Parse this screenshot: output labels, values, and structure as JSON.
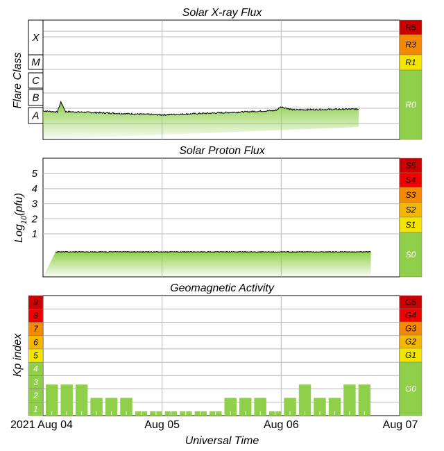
{
  "colors": {
    "green": "#8fcf4a",
    "yellow": "#f2e600",
    "gold": "#f5b800",
    "orange": "#f58a00",
    "red": "#f20000",
    "darkred": "#cc0000",
    "grid": "#b8b8b8"
  },
  "xaxis": {
    "label": "Universal Time",
    "ticks": [
      {
        "label": "2021 Aug 04",
        "day": 0
      },
      {
        "label": "Aug 05",
        "day": 1
      },
      {
        "label": "Aug 06",
        "day": 2
      },
      {
        "label": "Aug 07",
        "day": 3
      }
    ]
  },
  "chart_data": [
    {
      "type": "area",
      "title": "Solar X-ray Flux",
      "ylabel": "Flare Class",
      "classes": [
        "X",
        "M",
        "C",
        "B",
        "A"
      ],
      "scale": [
        {
          "label": "R5",
          "color": "darkred"
        },
        {
          "label": "R3",
          "color": "orange"
        },
        {
          "label": "R1",
          "color": "yellow"
        },
        {
          "label": "R0",
          "color": "green"
        }
      ],
      "series_profile": [
        {
          "day": 0.0,
          "level": 0.35
        },
        {
          "day": 0.12,
          "level": 0.32
        },
        {
          "day": 0.15,
          "level": 0.6
        },
        {
          "day": 0.19,
          "level": 0.33
        },
        {
          "day": 1.0,
          "level": 0.24
        },
        {
          "day": 1.6,
          "level": 0.31
        },
        {
          "day": 1.95,
          "level": 0.36
        },
        {
          "day": 2.0,
          "level": 0.46
        },
        {
          "day": 2.1,
          "level": 0.38
        },
        {
          "day": 2.65,
          "level": 0.4
        }
      ]
    },
    {
      "type": "area",
      "title": "Solar Proton Flux",
      "ylabel": "Log10(pfu)",
      "yticks": [
        "1",
        "2",
        "3",
        "4",
        "5"
      ],
      "scale": [
        {
          "label": "S5",
          "color": "darkred"
        },
        {
          "label": "S4",
          "color": "red"
        },
        {
          "label": "S3",
          "color": "orange"
        },
        {
          "label": "S2",
          "color": "gold"
        },
        {
          "label": "S1",
          "color": "yellow"
        },
        {
          "label": "S0",
          "color": "green"
        }
      ],
      "series_profile": [
        {
          "day": 0.0,
          "level": -0.15
        },
        {
          "day": 2.65,
          "level": -0.15
        }
      ]
    },
    {
      "type": "bar",
      "title": "Geomagnetic Activity",
      "ylabel": "Kp index",
      "ylim": [
        0,
        9
      ],
      "kp_levels": [
        "1",
        "2",
        "3",
        "4",
        "5",
        "6",
        "7",
        "8",
        "9"
      ],
      "scale": [
        {
          "label": "G5",
          "color": "darkred"
        },
        {
          "label": "G4",
          "color": "red"
        },
        {
          "label": "G3",
          "color": "orange"
        },
        {
          "label": "G2",
          "color": "gold"
        },
        {
          "label": "G1",
          "color": "yellow"
        },
        {
          "label": "G0",
          "color": "green"
        }
      ],
      "bar_interval_hours": 3,
      "values": [
        2.33,
        2.33,
        2.33,
        1.33,
        1.33,
        1.33,
        0.33,
        0.33,
        0.33,
        0.33,
        0.33,
        0.33,
        1.33,
        1.33,
        1.33,
        0.33,
        1.33,
        2.33,
        1.33,
        1.33,
        2.33,
        2.33
      ]
    }
  ]
}
